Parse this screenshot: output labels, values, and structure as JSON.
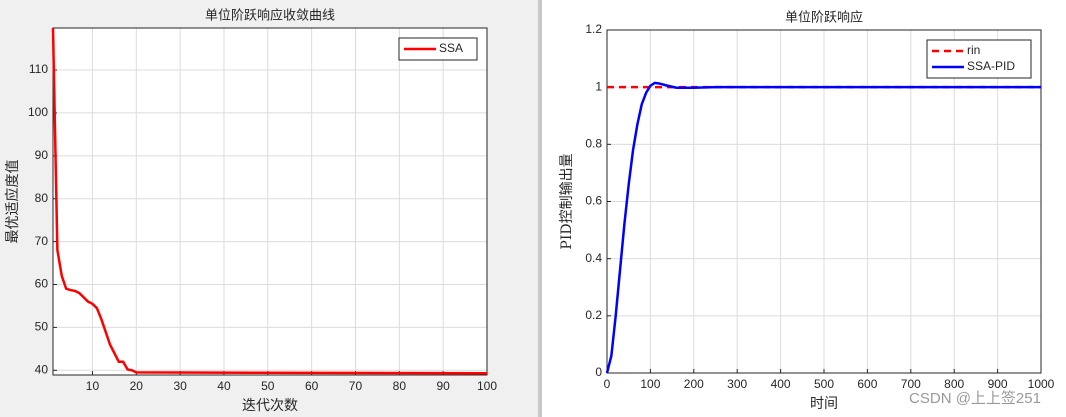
{
  "chart_data": [
    {
      "type": "line",
      "title": "单位阶跃响应收敛曲线",
      "x_label": "迭代次数",
      "y_label": "最优适应度值",
      "x": [
        1,
        2,
        3,
        4,
        5,
        6,
        7,
        8,
        9,
        10,
        11,
        12,
        13,
        14,
        15,
        16,
        17,
        18,
        19,
        20,
        100
      ],
      "series": [
        {
          "name": "SSA",
          "color": "#ff0000",
          "values": [
            119.8,
            68,
            62,
            59,
            58.7,
            58.5,
            58,
            57,
            56,
            55.5,
            54.5,
            52,
            49,
            46,
            44,
            42,
            42,
            40.2,
            40,
            39.5,
            39.3
          ]
        }
      ],
      "xlim": [
        1,
        100
      ],
      "xticks": [
        10,
        20,
        30,
        40,
        50,
        60,
        70,
        80,
        90,
        100
      ],
      "ylim": [
        38.9,
        119.8
      ],
      "yticks": [
        40,
        50,
        60,
        70,
        80,
        90,
        100,
        110
      ],
      "grid": true,
      "legend": "upper right"
    },
    {
      "type": "line",
      "title": "单位阶跃响应",
      "x_label": "时间",
      "y_label": "PID控制输出量",
      "x": [
        0,
        10,
        20,
        30,
        40,
        50,
        60,
        70,
        80,
        90,
        100,
        110,
        120,
        140,
        160,
        200,
        250,
        1000
      ],
      "series": [
        {
          "name": "rin",
          "color": "#ff0000",
          "dashed": true,
          "values": [
            1,
            1,
            1,
            1,
            1,
            1,
            1,
            1,
            1,
            1,
            1,
            1,
            1,
            1,
            1,
            1,
            1,
            1
          ]
        },
        {
          "name": "SSA-PID",
          "color": "#0000ff",
          "values": [
            0,
            0.06,
            0.2,
            0.36,
            0.52,
            0.66,
            0.78,
            0.87,
            0.94,
            0.98,
            1.005,
            1.015,
            1.013,
            1.005,
            0.998,
            0.998,
            1,
            1
          ]
        }
      ],
      "xlim": [
        0,
        1000
      ],
      "xticks": [
        0,
        100,
        200,
        300,
        400,
        500,
        600,
        700,
        800,
        900,
        1000
      ],
      "ylim": [
        0,
        1.2
      ],
      "yticks": [
        0,
        0.2,
        0.4,
        0.6,
        0.8,
        1,
        1.2
      ],
      "grid": true,
      "legend": "upper right"
    }
  ],
  "watermark": "CSDN @上上签251"
}
